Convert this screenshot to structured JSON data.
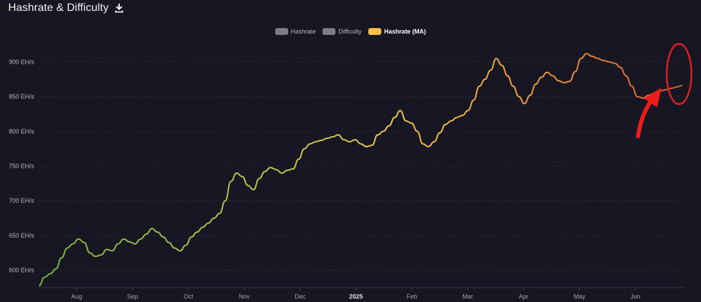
{
  "header": {
    "title": "Hashrate & Difficulty",
    "download_icon": "download-icon"
  },
  "legend": [
    {
      "label": "Hashrate",
      "color": "#7d7d86",
      "active": false
    },
    {
      "label": "Difficulty",
      "color": "#7d7d86",
      "active": false
    },
    {
      "label": "Hashrate (MA)",
      "color": "#f7c04a",
      "active": true
    }
  ],
  "chart_data": {
    "type": "line",
    "title": "Hashrate & Difficulty",
    "xlabel": "",
    "ylabel": "",
    "ylim": [
      575,
      930
    ],
    "y_ticks": [
      "600 EH/s",
      "650 EH/s",
      "700 EH/s",
      "750 EH/s",
      "800 EH/s",
      "850 EH/s",
      "900 EH/s"
    ],
    "x_ticks": [
      "Aug",
      "Sep",
      "Oct",
      "Nov",
      "Dec",
      "2025",
      "Feb",
      "Mar",
      "Apr",
      "May",
      "Jun"
    ],
    "grid": true,
    "legend_position": "top-center",
    "series": [
      {
        "name": "Hashrate (MA)",
        "x": [
          "Jul 16",
          "Jul 19",
          "Jul 22",
          "Jul 25",
          "Jul 28",
          "Jul 31",
          "Aug 3",
          "Aug 6",
          "Aug 9",
          "Aug 12",
          "Aug 15",
          "Aug 18",
          "Aug 21",
          "Aug 24",
          "Aug 27",
          "Aug 30",
          "Sep 2",
          "Sep 5",
          "Sep 8",
          "Sep 11",
          "Sep 14",
          "Sep 17",
          "Sep 20",
          "Sep 23",
          "Sep 26",
          "Sep 29",
          "Oct 2",
          "Oct 5",
          "Oct 8",
          "Oct 11",
          "Oct 14",
          "Oct 17",
          "Oct 20",
          "Oct 23",
          "Oct 26",
          "Oct 29",
          "Nov 1",
          "Nov 4",
          "Nov 7",
          "Nov 10",
          "Nov 13",
          "Nov 16",
          "Nov 19",
          "Nov 22",
          "Nov 25",
          "Nov 28",
          "Dec 1",
          "Dec 4",
          "Dec 7",
          "Dec 10",
          "Dec 13",
          "Dec 16",
          "Dec 19",
          "Dec 22",
          "Dec 25",
          "Dec 28",
          "Dec 31",
          "Jan 3",
          "Jan 6",
          "Jan 9",
          "Jan 12",
          "Jan 15",
          "Jan 18",
          "Jan 21",
          "Jan 24",
          "Jan 27",
          "Jan 30",
          "Feb 2",
          "Feb 5",
          "Feb 8",
          "Feb 11",
          "Feb 14",
          "Feb 17",
          "Feb 20",
          "Feb 23",
          "Feb 26",
          "Mar 1",
          "Mar 4",
          "Mar 7",
          "Mar 10",
          "Mar 13",
          "Mar 16",
          "Mar 19",
          "Mar 22",
          "Mar 25",
          "Mar 28",
          "Mar 31",
          "Apr 3",
          "Apr 6",
          "Apr 9",
          "Apr 12",
          "Apr 15",
          "Apr 18",
          "Apr 21",
          "Apr 24",
          "Apr 27",
          "Apr 30",
          "May 3",
          "May 6",
          "May 9",
          "May 12",
          "May 15",
          "May 18",
          "May 21",
          "May 24",
          "May 27",
          "May 30",
          "Jun 2",
          "Jun 5",
          "Jun 8",
          "Jun 11",
          "Jun 14",
          "Jun 17",
          "Jun 20",
          "Jun 23"
        ],
        "values": [
          578,
          590,
          595,
          602,
          618,
          632,
          638,
          645,
          640,
          625,
          620,
          622,
          630,
          628,
          638,
          645,
          641,
          638,
          645,
          652,
          660,
          655,
          648,
          640,
          632,
          628,
          636,
          648,
          655,
          662,
          668,
          675,
          682,
          700,
          728,
          740,
          735,
          722,
          716,
          732,
          742,
          748,
          745,
          740,
          744,
          746,
          760,
          775,
          782,
          785,
          787,
          790,
          792,
          795,
          788,
          785,
          788,
          782,
          778,
          780,
          795,
          800,
          808,
          820,
          830,
          815,
          812,
          800,
          782,
          778,
          785,
          798,
          810,
          815,
          820,
          823,
          830,
          845,
          865,
          875,
          888,
          905,
          895,
          880,
          865,
          850,
          840,
          852,
          868,
          878,
          885,
          880,
          873,
          870,
          872,
          886,
          905,
          912,
          908,
          905,
          902,
          900,
          898,
          892,
          880,
          865,
          850,
          848,
          852,
          855,
          858,
          860,
          862,
          864,
          866
        ]
      }
    ]
  }
}
